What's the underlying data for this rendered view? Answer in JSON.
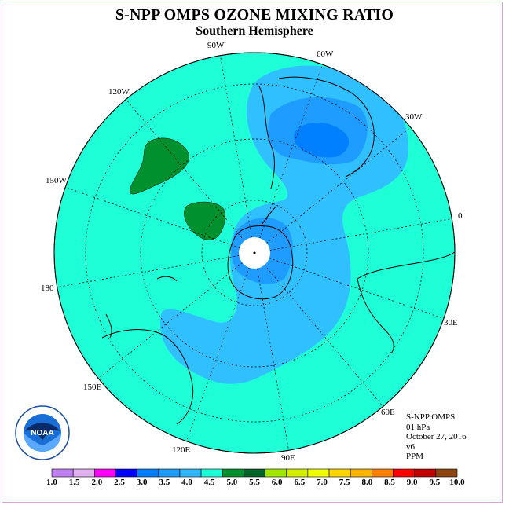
{
  "header": {
    "title": "S-NPP OMPS OZONE MIXING RATIO",
    "subtitle": "Southern Hemisphere"
  },
  "longitude_labels": [
    "90W",
    "60W",
    "30W",
    "0",
    "30E",
    "60E",
    "90E",
    "120E",
    "150E",
    "180",
    "150W",
    "120W"
  ],
  "info": {
    "instrument": "S-NPP OMPS",
    "level": "01 hPa",
    "date": "October 27, 2016",
    "version": "v6",
    "units": "PPM"
  },
  "colorbar": {
    "labels": [
      "1.0",
      "1.5",
      "2.0",
      "2.5",
      "3.0",
      "3.5",
      "4.0",
      "4.5",
      "5.0",
      "5.5",
      "6.0",
      "6.5",
      "7.0",
      "7.5",
      "8.0",
      "8.5",
      "9.0",
      "9.5",
      "10.0"
    ],
    "colors": [
      "#c080f0",
      "#e0b0f0",
      "#ff00ff",
      "#0000ff",
      "#0080ff",
      "#1e9cff",
      "#30b8ff",
      "#1effd8",
      "#00902d",
      "#006428",
      "#a0e800",
      "#d4ee00",
      "#f0ff00",
      "#ffd700",
      "#ffb400",
      "#ff7f00",
      "#ff0000",
      "#c00000",
      "#8b4513"
    ]
  },
  "logo": {
    "name": "noaa-logo",
    "text": "NOAA"
  },
  "colors": {
    "background_field": "#1effd8",
    "field_4_0": "#30c0ff",
    "field_3_5": "#1e9cff",
    "field_3_0": "#0080ff",
    "field_5_5": "#00902d"
  }
}
